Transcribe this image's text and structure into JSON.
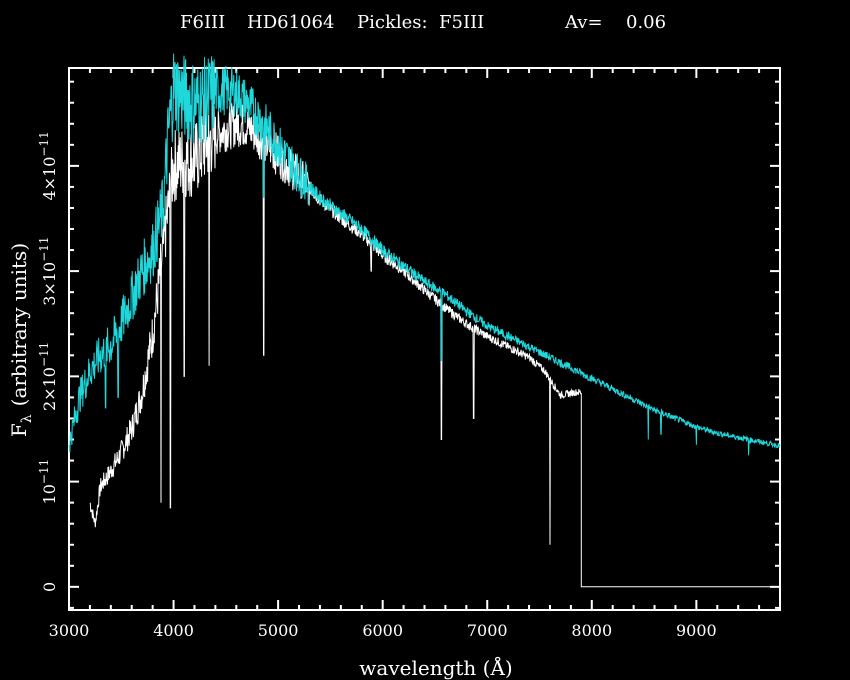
{
  "title": {
    "sptype": "F6III",
    "star": "HD61064",
    "pickles": "Pickles:  F5III",
    "av_label": "Av=",
    "av_value": "0.06"
  },
  "colors": {
    "background": "#000000",
    "observed": "#ffffff",
    "template": "#1fd8dc",
    "axes": "#ffffff"
  },
  "chart_data": {
    "type": "line",
    "xlabel": "wavelength (Å)",
    "ylabel": "F_λ (arbitrary units)",
    "ylabel_parts": {
      "F": "F",
      "sub": "λ",
      "rest": "(arbitrary units)"
    },
    "xlim": [
      3000,
      9800
    ],
    "ylim": [
      -2.2e-12,
      4.93e-11
    ],
    "x_ticks": [
      3000,
      4000,
      5000,
      6000,
      7000,
      8000,
      9000
    ],
    "x_tick_labels": [
      "3000",
      "4000",
      "5000",
      "6000",
      "7000",
      "8000",
      "9000"
    ],
    "y_ticks": [
      0,
      1e-11,
      2e-11,
      3e-11,
      4e-11
    ],
    "y_tick_labels": [
      {
        "mant": "0",
        "exp": ""
      },
      {
        "mant": "10",
        "exp": "−11"
      },
      {
        "mant": "2×10",
        "exp": "−11"
      },
      {
        "mant": "3×10",
        "exp": "−11"
      },
      {
        "mant": "4×10",
        "exp": "−11"
      }
    ],
    "series": [
      {
        "role": "observed",
        "color": "#ffffff",
        "x": [
          3200,
          3250,
          3300,
          3400,
          3500,
          3600,
          3700,
          3800,
          3900,
          4000,
          4100,
          4200,
          4300,
          4400,
          4500,
          4600,
          4700,
          4800,
          4900,
          5000,
          5200,
          5400,
          5600,
          5800,
          6000,
          6200,
          6400,
          6600,
          6800,
          7000,
          7200,
          7400,
          7550,
          7700,
          7850,
          7880
        ],
        "y": [
          8e-12,
          6e-12,
          9.5e-12,
          1.1e-11,
          1.28e-11,
          1.5e-11,
          1.85e-11,
          2.4e-11,
          3.2e-11,
          4e-11,
          4.05e-11,
          4.05e-11,
          4.2e-11,
          4.3e-11,
          4.35e-11,
          4.4e-11,
          4.38e-11,
          4.3e-11,
          4.2e-11,
          4.1e-11,
          3.9e-11,
          3.68e-11,
          3.5e-11,
          3.35e-11,
          3.15e-11,
          3e-11,
          2.82e-11,
          2.65e-11,
          2.5e-11,
          2.38e-11,
          2.28e-11,
          2.18e-11,
          2.05e-11,
          1.82e-11,
          1.85e-11,
          1.85e-11
        ],
        "dips": [
          {
            "x": 3880,
            "y": 8e-12
          },
          {
            "x": 3970,
            "y": 7.5e-12
          },
          {
            "x": 4102,
            "y": 2e-11
          },
          {
            "x": 4340,
            "y": 2.1e-11
          },
          {
            "x": 4861,
            "y": 2.2e-11
          },
          {
            "x": 5890,
            "y": 3e-11
          },
          {
            "x": 6563,
            "y": 1.4e-11
          },
          {
            "x": 6870,
            "y": 1.6e-11
          },
          {
            "x": 7600,
            "y": 4e-12
          }
        ],
        "cutoff_x": 7900,
        "tail_y": 0
      },
      {
        "role": "template",
        "color": "#1fd8dc",
        "x": [
          3000,
          3100,
          3200,
          3300,
          3400,
          3500,
          3600,
          3700,
          3800,
          3900,
          3950,
          4000,
          4100,
          4200,
          4300,
          4400,
          4500,
          4600,
          4700,
          4800,
          4900,
          5000,
          5200,
          5400,
          5600,
          5800,
          6000,
          6200,
          6400,
          6600,
          6800,
          7000,
          7200,
          7400,
          7600,
          7800,
          8000,
          8200,
          8400,
          8600,
          8800,
          9000,
          9200,
          9400,
          9600,
          9800
        ],
        "y": [
          1.35e-11,
          1.8e-11,
          2.05e-11,
          2.2e-11,
          2.3e-11,
          2.5e-11,
          2.75e-11,
          3e-11,
          3.2e-11,
          3.6e-11,
          4.3e-11,
          4.75e-11,
          4.65e-11,
          4.6e-11,
          4.62e-11,
          4.7e-11,
          4.72e-11,
          4.7e-11,
          4.6e-11,
          4.48e-11,
          4.35e-11,
          4.2e-11,
          3.92e-11,
          3.7e-11,
          3.55e-11,
          3.4e-11,
          3.2e-11,
          3.05e-11,
          2.9e-11,
          2.78e-11,
          2.62e-11,
          2.48e-11,
          2.38e-11,
          2.28e-11,
          2.18e-11,
          2.08e-11,
          1.98e-11,
          1.88e-11,
          1.78e-11,
          1.68e-11,
          1.6e-11,
          1.52e-11,
          1.46e-11,
          1.42e-11,
          1.38e-11,
          1.34e-11
        ],
        "dips": [
          {
            "x": 3350,
            "y": 1.7e-11
          },
          {
            "x": 3470,
            "y": 1.8e-11
          },
          {
            "x": 4861,
            "y": 3.7e-11
          },
          {
            "x": 6563,
            "y": 2.15e-11
          },
          {
            "x": 8540,
            "y": 1.4e-11
          },
          {
            "x": 8662,
            "y": 1.45e-11
          },
          {
            "x": 9000,
            "y": 1.35e-11
          },
          {
            "x": 9500,
            "y": 1.25e-11
          }
        ]
      }
    ],
    "grid": false,
    "legend": "none"
  }
}
